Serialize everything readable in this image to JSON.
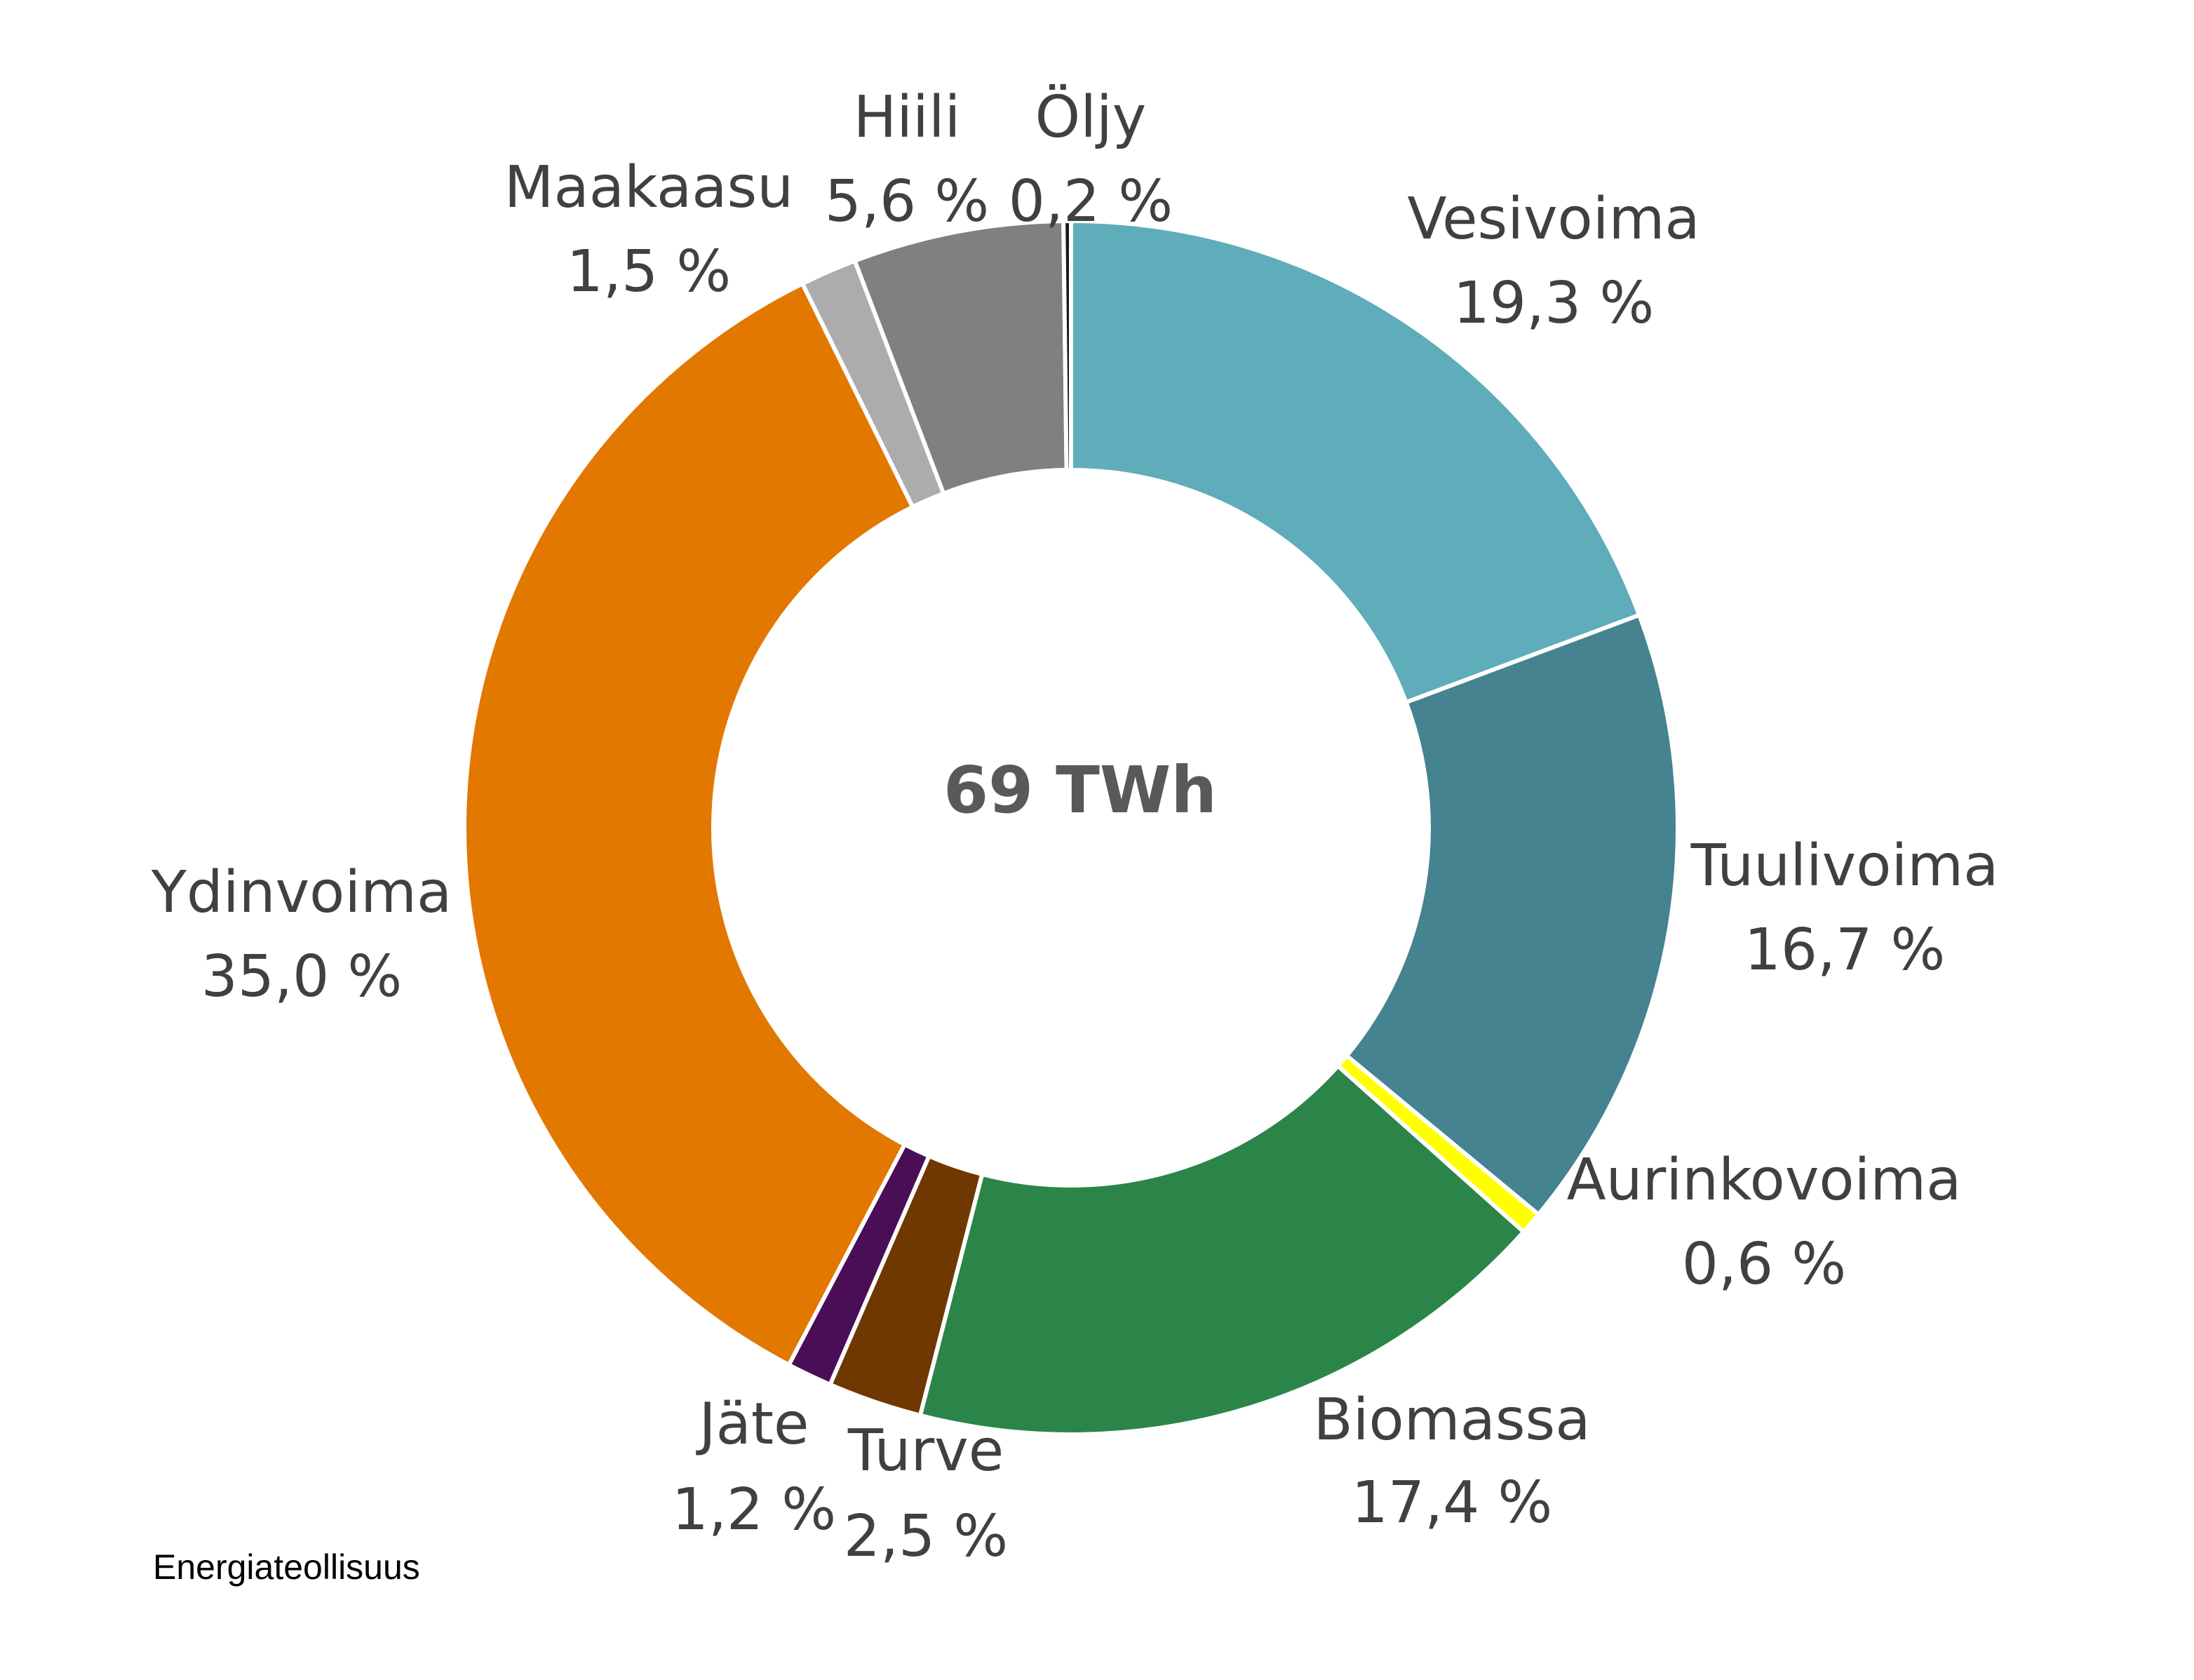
{
  "chart_data": {
    "type": "pie",
    "center_label": "69 TWh",
    "slices": [
      {
        "label": "Vesivoima",
        "value": 19.3,
        "value_label": "19,3 %",
        "color": "#5FACBB"
      },
      {
        "label": "Tuulivoima",
        "value": 16.7,
        "value_label": "16,7 %",
        "color": "#44838F"
      },
      {
        "label": "Aurinkovoima",
        "value": 0.6,
        "value_label": "0,6 %",
        "color": "#FFFF00"
      },
      {
        "label": "Biomassa",
        "value": 17.4,
        "value_label": "17,4 %",
        "color": "#2C8548"
      },
      {
        "label": "Turve",
        "value": 2.5,
        "value_label": "2,5 %",
        "color": "#6E3800"
      },
      {
        "label": "Jäte",
        "value": 1.2,
        "value_label": "1,2 %",
        "color": "#4A0E57"
      },
      {
        "label": "Ydinvoima",
        "value": 35.0,
        "value_label": "35,0 %",
        "color": "#E27800"
      },
      {
        "label": "Maakaasu",
        "value": 1.5,
        "value_label": "1,5 %",
        "color": "#ACACAC"
      },
      {
        "label": "Hiili",
        "value": 5.6,
        "value_label": "5,6 %",
        "color": "#808080"
      },
      {
        "label": "Öljy",
        "value": 0.2,
        "value_label": "0,2 %",
        "color": "#1A1A1A"
      }
    ]
  },
  "source": "Energiateollisuus"
}
